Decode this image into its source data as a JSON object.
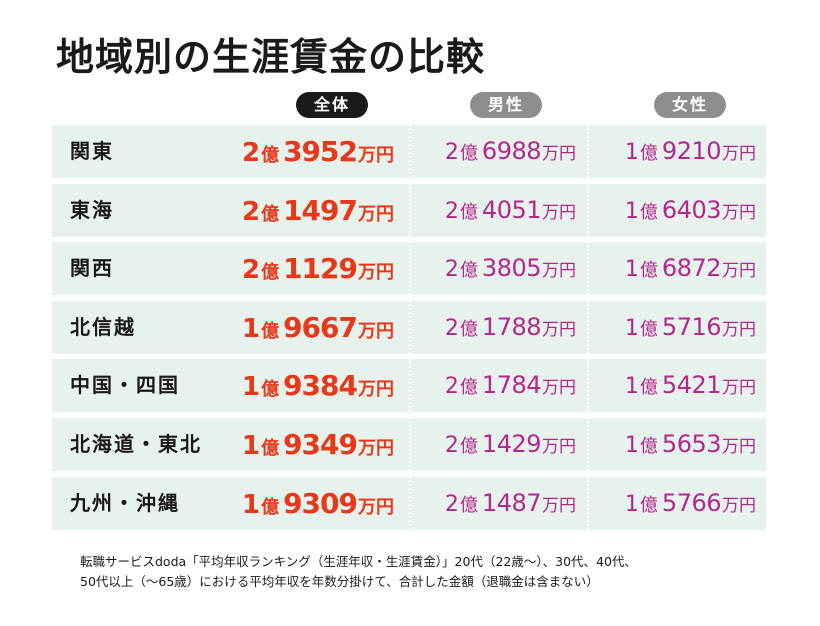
{
  "title": "地域別の生涯賃金の比較",
  "headers": {
    "all": "全体",
    "male": "男性",
    "female": "女性"
  },
  "units": {
    "oku": "億",
    "man": "万円"
  },
  "chart_data": {
    "type": "table",
    "title": "地域別の生涯賃金の比較",
    "columns": [
      "全体",
      "男性",
      "女性"
    ],
    "rows": [
      {
        "region": "関東",
        "all": [
          "2",
          "3952"
        ],
        "male": [
          "2",
          "6988"
        ],
        "female": [
          "1",
          "9210"
        ]
      },
      {
        "region": "東海",
        "all": [
          "2",
          "1497"
        ],
        "male": [
          "2",
          "4051"
        ],
        "female": [
          "1",
          "6403"
        ]
      },
      {
        "region": "関西",
        "all": [
          "2",
          "1129"
        ],
        "male": [
          "2",
          "3805"
        ],
        "female": [
          "1",
          "6872"
        ]
      },
      {
        "region": "北信越",
        "all": [
          "1",
          "9667"
        ],
        "male": [
          "2",
          "1788"
        ],
        "female": [
          "1",
          "5716"
        ]
      },
      {
        "region": "中国・四国",
        "all": [
          "1",
          "9384"
        ],
        "male": [
          "2",
          "1784"
        ],
        "female": [
          "1",
          "5421"
        ]
      },
      {
        "region": "北海道・東北",
        "all": [
          "1",
          "9349"
        ],
        "male": [
          "2",
          "1429"
        ],
        "female": [
          "1",
          "5653"
        ]
      },
      {
        "region": "九州・沖縄",
        "all": [
          "1",
          "9309"
        ],
        "male": [
          "2",
          "1487"
        ],
        "female": [
          "1",
          "5766"
        ]
      }
    ]
  },
  "note": {
    "line1": "転職サービスdoda「平均年収ランキング（生涯年収・生涯賃金）」20代（22歳～）、30代、40代、",
    "line2": "50代以上（～65歳）における平均年収を年数分掛けて、合計した金額（退職金は含まない）"
  },
  "colors": {
    "all_value": "#e8381a",
    "gender_value": "#b3278e",
    "row_bg": "#e8f2ec"
  }
}
